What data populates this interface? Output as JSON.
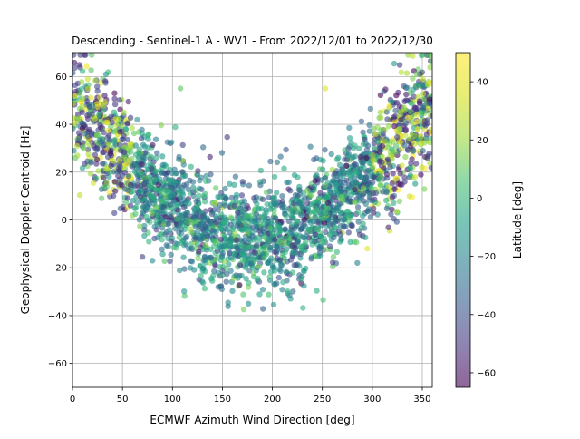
{
  "chart_data": {
    "type": "scatter",
    "title": "Descending - Sentinel-1 A - WV1 - From 2022/12/01 to 2022/12/30",
    "xlabel": "ECMWF Azimuth Wind Direction [deg]",
    "ylabel": "Geophysical Doppler Centroid [Hz]",
    "xlim": [
      0,
      360
    ],
    "ylim": [
      -70,
      70
    ],
    "xticks": [
      0,
      50,
      100,
      150,
      200,
      250,
      300,
      350
    ],
    "yticks": [
      -60,
      -40,
      -20,
      0,
      20,
      40,
      60
    ],
    "grid": true,
    "colorbar": {
      "label": "Latitude [deg]",
      "range": [
        -65,
        50
      ],
      "ticks": [
        -60,
        -40,
        -20,
        0,
        20,
        40
      ],
      "colormap": "viridis",
      "alpha": 0.6
    },
    "cluster_centers": [
      {
        "x": 20,
        "y": 45,
        "latitude": 20
      },
      {
        "x": 30,
        "y": 35,
        "latitude": -40
      },
      {
        "x": 80,
        "y": 20,
        "latitude": 0
      },
      {
        "x": 150,
        "y": 5,
        "latitude": 0
      },
      {
        "x": 180,
        "y": -5,
        "latitude": -10
      },
      {
        "x": 210,
        "y": 0,
        "latitude": 0
      },
      {
        "x": 260,
        "y": 20,
        "latitude": 0
      },
      {
        "x": 330,
        "y": 40,
        "latitude": -30
      },
      {
        "x": 340,
        "y": 55,
        "latitude": 30
      }
    ],
    "points": [
      {
        "x": 176,
        "y": -35,
        "latitude": -10
      },
      {
        "x": 295,
        "y": -12,
        "latitude": 45
      },
      {
        "x": 285,
        "y": -18,
        "latitude": -15
      },
      {
        "x": 80,
        "y": -17,
        "latitude": -10
      },
      {
        "x": 108,
        "y": 55,
        "latitude": 20
      },
      {
        "x": 253,
        "y": 55,
        "latitude": 45
      }
    ]
  }
}
